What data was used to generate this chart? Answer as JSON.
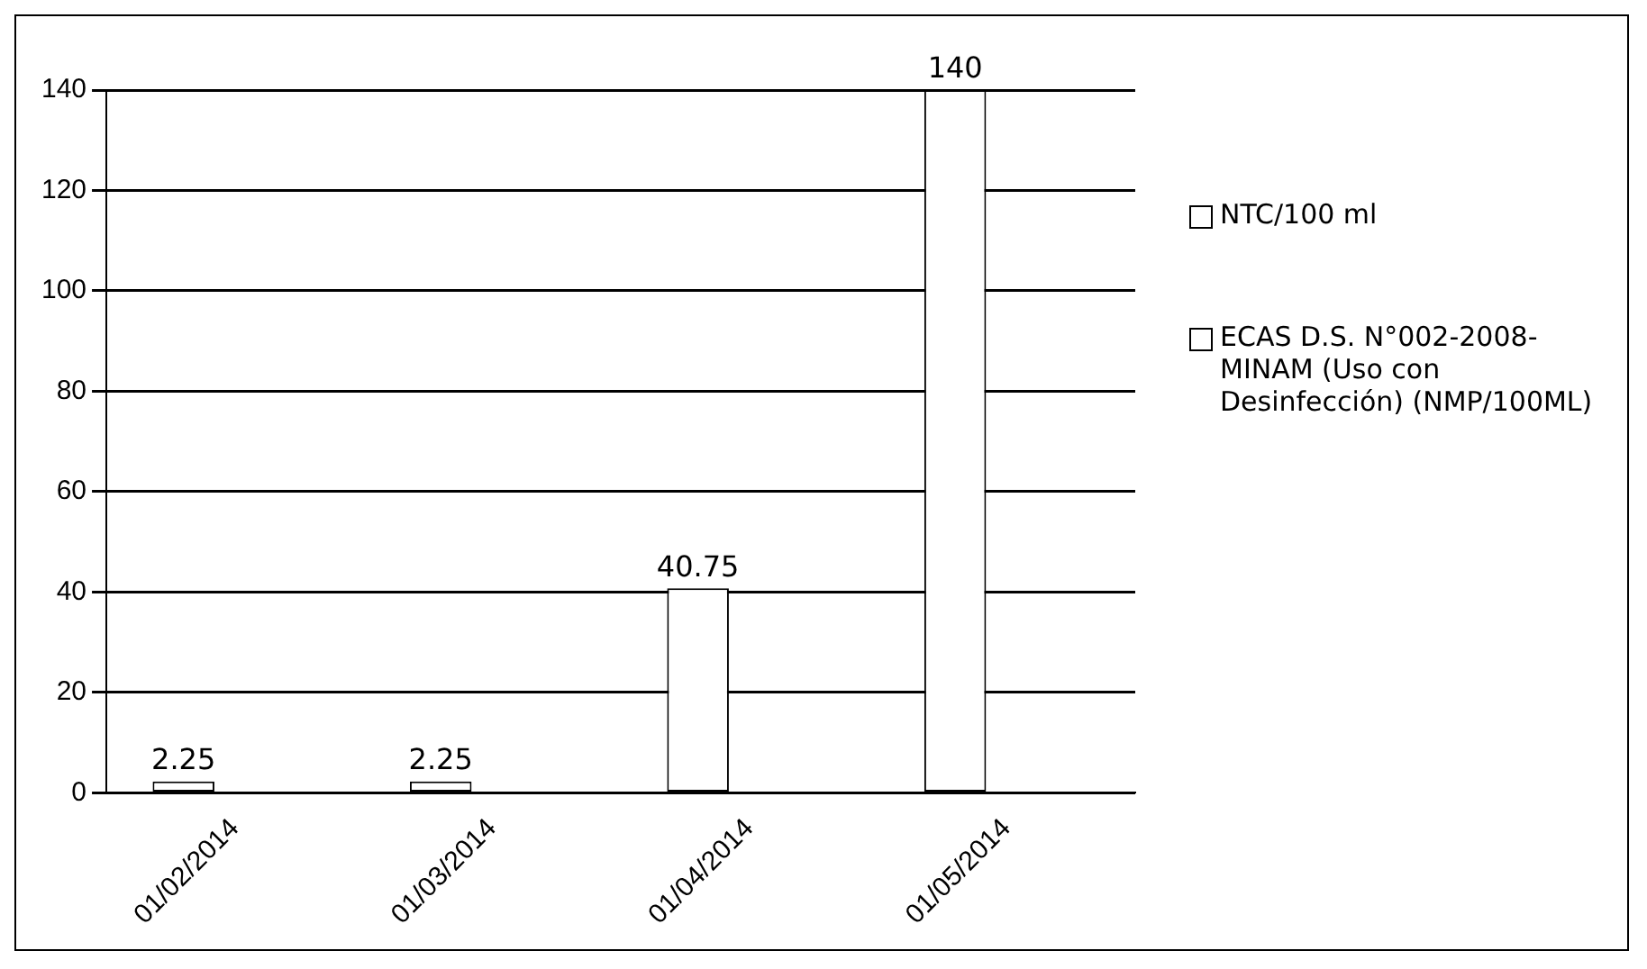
{
  "chart_data": {
    "type": "bar",
    "categories": [
      "01/02/2014",
      "01/03/2014",
      "01/04/2014",
      "01/05/2014"
    ],
    "series": [
      {
        "name": "NTC/100 ml",
        "color": "#ffffff",
        "values": [
          2.25,
          2.25,
          40.75,
          140
        ],
        "value_labels": [
          "2.25",
          "2.25",
          "40.75",
          "140"
        ]
      },
      {
        "name": "ECAS D.S. N°002-2008-MINAM (Uso con Desinfección) (NMP/100ML)",
        "color": "#ffffff",
        "values": [
          0,
          0,
          0,
          0
        ]
      }
    ],
    "ylim": [
      0,
      140
    ],
    "yticks": [
      0,
      20,
      40,
      60,
      80,
      100,
      120,
      140
    ],
    "grid": "y",
    "legend": "right"
  }
}
